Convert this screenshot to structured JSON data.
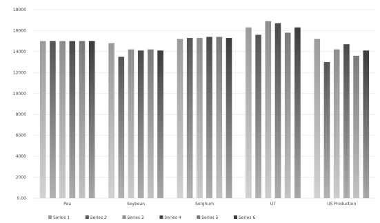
{
  "chart_data": {
    "type": "bar",
    "title": "",
    "xlabel": "",
    "ylabel": "",
    "ylim": [
      0,
      18000
    ],
    "yticks": [
      0,
      2000,
      4000,
      6000,
      8000,
      10000,
      12000,
      14000,
      16000,
      18000
    ],
    "ytick_labels": [
      "0.00",
      "2000",
      "4000",
      "6000",
      "8000",
      "10000",
      "12000",
      "14000",
      "16000",
      "18000"
    ],
    "grid": true,
    "legend_position": "bottom",
    "categories": [
      "Pea",
      "Soybean",
      "Sorghum",
      "UT",
      "US Production"
    ],
    "series": [
      {
        "name": "Series 1",
        "values": [
          15000,
          14800,
          15200,
          16300,
          15200
        ]
      },
      {
        "name": "Series 2",
        "values": [
          15000,
          13500,
          15300,
          15600,
          13000
        ]
      },
      {
        "name": "Series 3",
        "values": [
          15000,
          14200,
          15300,
          16900,
          14200
        ]
      },
      {
        "name": "Series 4",
        "values": [
          15000,
          14100,
          15400,
          16700,
          14700
        ]
      },
      {
        "name": "Series 5",
        "values": [
          15000,
          14200,
          15400,
          15800,
          13600
        ]
      },
      {
        "name": "Series 6",
        "values": [
          15000,
          14100,
          15300,
          16300,
          14100
        ]
      }
    ],
    "colors": [
      "#9b9b9b",
      "#555555",
      "#8d8d8d",
      "#4a4a4a",
      "#7a7a7a",
      "#3c3c3c"
    ]
  }
}
